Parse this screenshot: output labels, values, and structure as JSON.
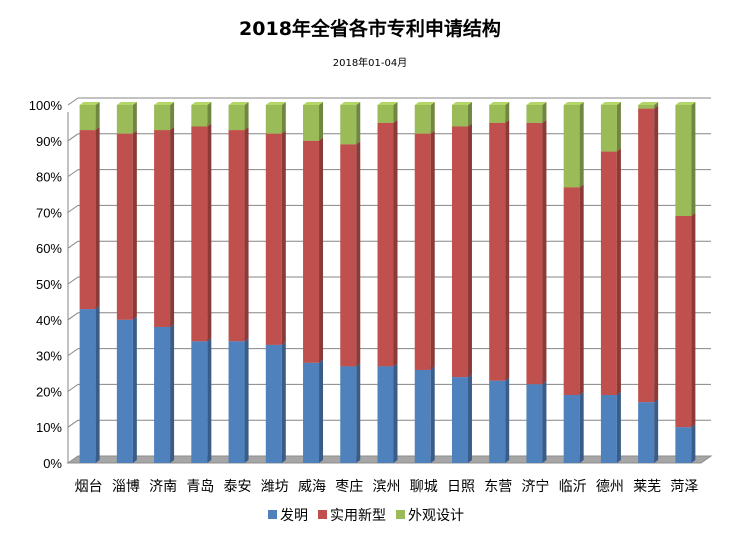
{
  "chart_data": {
    "type": "bar",
    "stacked": true,
    "percent": true,
    "title": "2018年全省各市专利申请结构",
    "subtitle": "2018年01-04月",
    "categories": [
      "烟台",
      "淄博",
      "济南",
      "青岛",
      "泰安",
      "潍坊",
      "威海",
      "枣庄",
      "滨州",
      "聊城",
      "日照",
      "东营",
      "济宁",
      "临沂",
      "德州",
      "莱芜",
      "菏泽"
    ],
    "series": [
      {
        "name": "发明",
        "color": "#4f81bd",
        "values": [
          43,
          40,
          38,
          34,
          34,
          33,
          28,
          27,
          27,
          26,
          24,
          23,
          22,
          19,
          19,
          17,
          10
        ]
      },
      {
        "name": "实用新型",
        "color": "#c0504d",
        "values": [
          50,
          52,
          55,
          60,
          59,
          59,
          62,
          62,
          68,
          66,
          70,
          72,
          73,
          58,
          68,
          82,
          59
        ]
      },
      {
        "name": "外观设计",
        "color": "#9bbb59",
        "values": [
          7,
          8,
          7,
          6,
          7,
          8,
          10,
          11,
          5,
          8,
          6,
          5,
          5,
          23,
          13,
          1,
          31
        ]
      }
    ],
    "ylim": [
      0,
      100
    ],
    "yticks": [
      "0%",
      "10%",
      "20%",
      "30%",
      "40%",
      "50%",
      "60%",
      "70%",
      "80%",
      "90%",
      "100%"
    ],
    "grid": true,
    "legend_position": "bottom"
  }
}
